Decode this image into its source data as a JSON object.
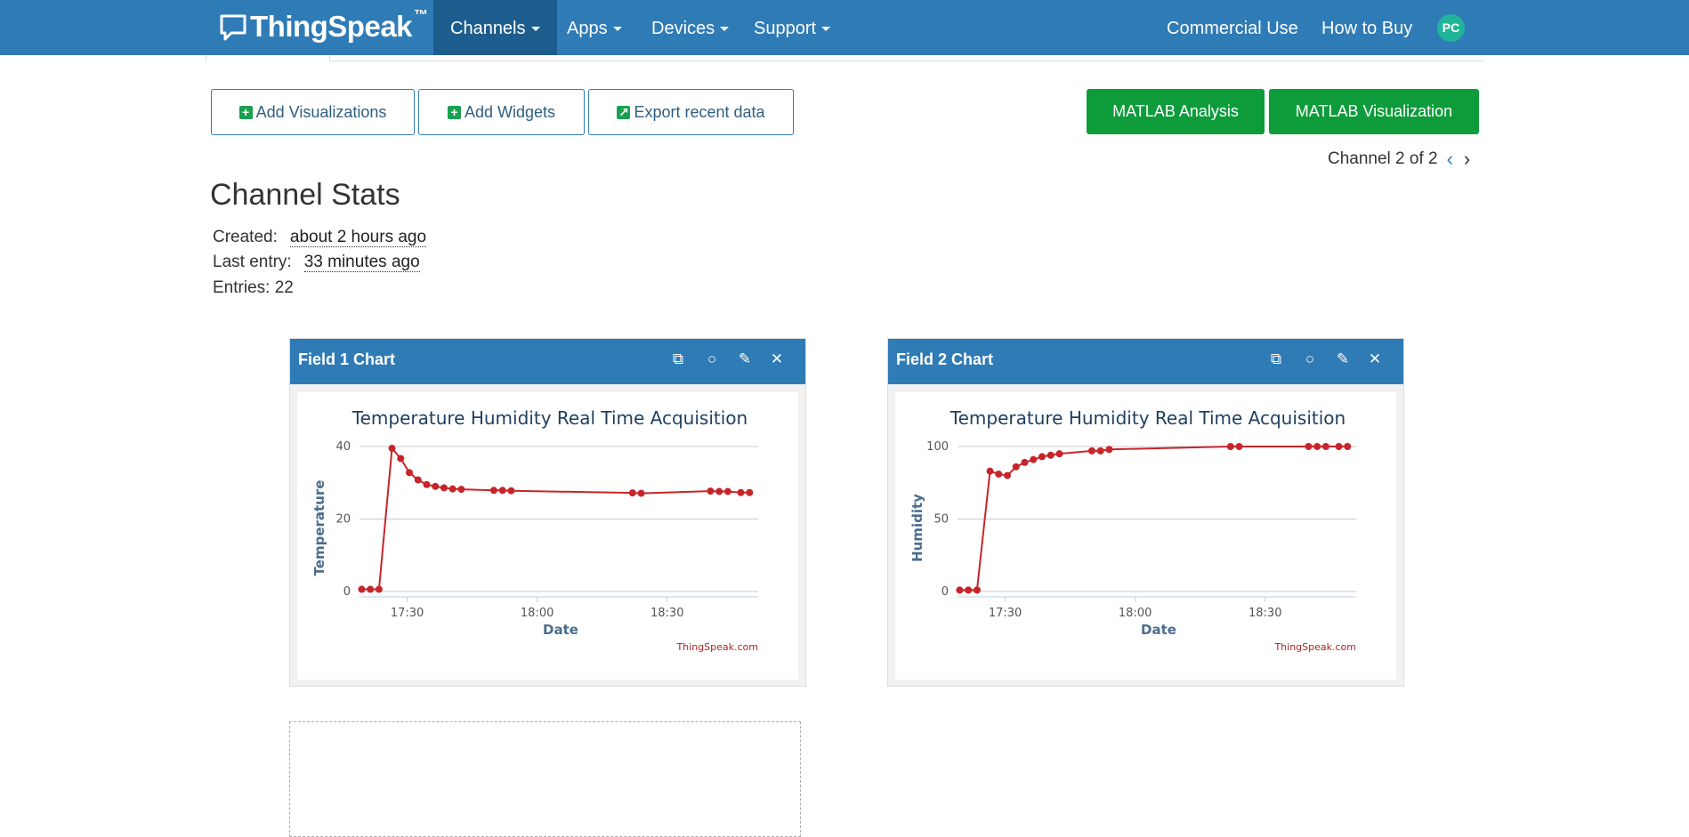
{
  "nav": {
    "brand": "ThingSpeak",
    "brand_tm": "™",
    "items": [
      "Channels",
      "Apps",
      "Devices",
      "Support"
    ],
    "right": [
      "Commercial Use",
      "How to Buy"
    ],
    "avatar": "PC"
  },
  "toolbar": {
    "add_visualizations": "Add Visualizations",
    "add_widgets": "Add Widgets",
    "export": "Export recent data",
    "matlab_analysis": "MATLAB Analysis",
    "matlab_visualization": "MATLAB Visualization"
  },
  "channel_nav": {
    "label": "Channel 2 of 2"
  },
  "stats": {
    "title": "Channel Stats",
    "created_label": "Created:",
    "created_value": "about 2 hours ago",
    "last_entry_label": "Last entry:",
    "last_entry_value": "33 minutes ago",
    "entries": "Entries: 22"
  },
  "panels": [
    {
      "title": "Field 1 Chart"
    },
    {
      "title": "Field 2 Chart"
    }
  ],
  "chart_data": [
    {
      "type": "line",
      "title": "Temperature Humidity Real Time Acquisition",
      "xlabel": "Date",
      "ylabel": "Temperature",
      "credit": "ThingSpeak.com",
      "color": "#c7252b",
      "x_ticks": [
        "17:30",
        "18:00",
        "18:30"
      ],
      "x_tick_values": [
        30,
        60,
        90
      ],
      "xlim": [
        19,
        111
      ],
      "y_ticks": [
        0,
        20,
        40
      ],
      "ylim": [
        0,
        40
      ],
      "x": [
        19.5,
        21.5,
        23.5,
        26.5,
        28.5,
        30.5,
        32.5,
        34.5,
        36.5,
        38.5,
        40.5,
        42.5,
        50,
        52,
        54,
        82,
        84,
        100,
        102,
        104,
        107,
        109
      ],
      "values": [
        0.6,
        0.6,
        0.6,
        39.5,
        36.7,
        32.8,
        30.8,
        29.5,
        29.0,
        28.6,
        28.3,
        28.2,
        27.9,
        27.9,
        27.8,
        27.2,
        27.1,
        27.7,
        27.6,
        27.6,
        27.3,
        27.3
      ]
    },
    {
      "type": "line",
      "title": "Temperature Humidity Real Time Acquisition",
      "xlabel": "Date",
      "ylabel": "Humidity",
      "credit": "ThingSpeak.com",
      "color": "#c7252b",
      "x_ticks": [
        "17:30",
        "18:00",
        "18:30"
      ],
      "x_tick_values": [
        30,
        60,
        90
      ],
      "xlim": [
        19,
        111
      ],
      "y_ticks": [
        0,
        50,
        100
      ],
      "ylim": [
        0,
        100
      ],
      "x": [
        19.5,
        21.5,
        23.5,
        26.5,
        28.5,
        30.5,
        32.5,
        34.5,
        36.5,
        38.5,
        40.5,
        42.5,
        50,
        52,
        54,
        82,
        84,
        100,
        102,
        104,
        107,
        109
      ],
      "values": [
        1,
        1,
        1,
        83,
        81,
        80,
        86,
        89,
        91,
        93,
        94,
        95,
        97,
        97,
        98,
        100,
        100,
        100,
        100,
        100,
        100,
        100
      ]
    }
  ]
}
